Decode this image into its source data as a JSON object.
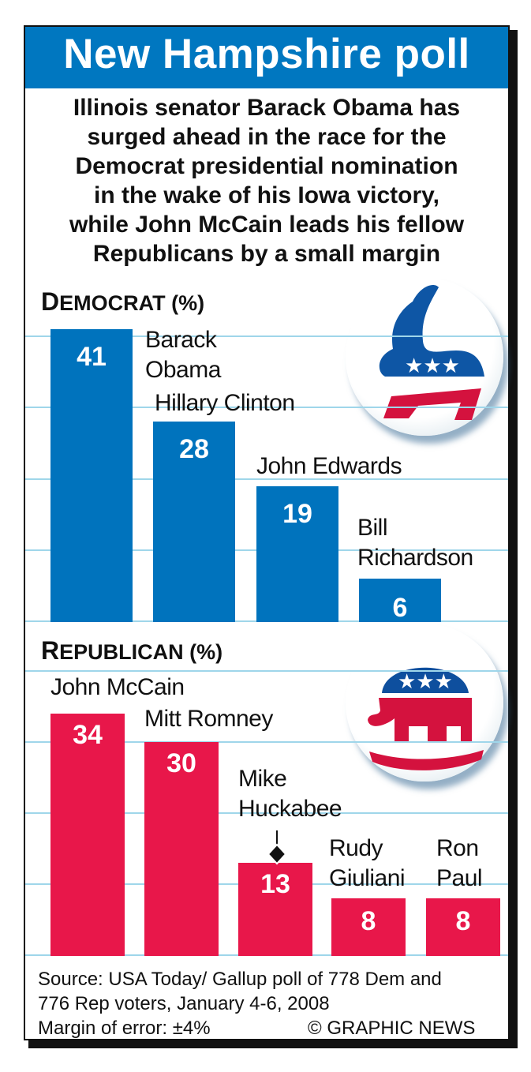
{
  "header": {
    "title": "New Hampshire poll"
  },
  "subtitle": [
    "Illinois senator Barack Obama has",
    "surged ahead in the race for the",
    "Democrat presidential nomination",
    "in the wake of his Iowa victory,",
    "while John McCain leads his fellow",
    "Republicans by a small margin"
  ],
  "colors": {
    "democrat": "#0073bd",
    "republican": "#e8174a",
    "grid": "#9fd6ea",
    "title_bg": "#0077c0"
  },
  "icons": {
    "democrat": "donkey-icon",
    "republican": "elephant-icon"
  },
  "chart_data": [
    {
      "type": "bar",
      "title_initial": "D",
      "title_rest": "EMOCRAT (%)",
      "categories": [
        "Barack Obama",
        "Hillary Clinton",
        "John Edwards",
        "Bill Richardson"
      ],
      "label_lines": [
        [
          "Barack",
          "Obama"
        ],
        [
          "Hillary Clinton"
        ],
        [
          "John Edwards"
        ],
        [
          "Bill",
          "Richardson"
        ]
      ],
      "values": [
        41,
        28,
        19,
        6
      ],
      "value_labels": [
        "41",
        "28",
        "19",
        "6"
      ],
      "ylim": [
        0,
        40
      ],
      "grid": true
    },
    {
      "type": "bar",
      "title_initial": "R",
      "title_rest": "EPUBLICAN (%)",
      "categories": [
        "John McCain",
        "Mitt Romney",
        "Mike Huckabee",
        "Rudy Giuliani",
        "Ron Paul"
      ],
      "label_lines": [
        [
          "John McCain"
        ],
        [
          "Mitt Romney"
        ],
        [
          "Mike",
          "Huckabee"
        ],
        [
          "Rudy",
          "Giuliani"
        ],
        [
          "Ron",
          "Paul"
        ]
      ],
      "values": [
        34,
        30,
        13,
        8,
        8
      ],
      "value_labels": [
        "34",
        "30",
        "13",
        "8",
        "8"
      ],
      "ylim": [
        0,
        40
      ],
      "grid": true
    }
  ],
  "footer": {
    "source_line1": "Source: USA Today/ Gallup poll of 778 Dem and",
    "source_line2": "776 Rep voters, January 4-6, 2008",
    "margin": "Margin of error: ±4%",
    "credit": "© GRAPHIC NEWS"
  }
}
